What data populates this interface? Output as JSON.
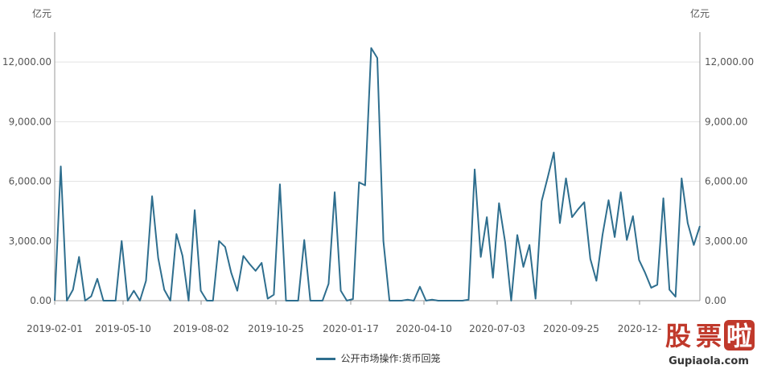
{
  "chart_data": {
    "type": "line",
    "left_unit": "亿元",
    "right_unit": "亿元",
    "ylim": [
      0,
      13500
    ],
    "y_ticks": [
      0,
      3000,
      6000,
      9000,
      12000
    ],
    "y_tick_labels": [
      "0.00",
      "3,000.00",
      "6,000.00",
      "9,000.00",
      "12,000.00"
    ],
    "x_tick_labels": [
      "2019-02-01",
      "2019-05-10",
      "2019-08-02",
      "2019-10-25",
      "2020-01-17",
      "2020-04-10",
      "2020-07-03",
      "2020-09-25",
      "2020-12-"
    ],
    "grid": "horizontal",
    "legend_position": "bottom-center",
    "series": [
      {
        "name": "公开市场操作:货币回笼",
        "color": "#2e6e8e",
        "values": [
          0,
          6750,
          0,
          550,
          2200,
          0,
          220,
          1100,
          0,
          0,
          0,
          3000,
          0,
          500,
          0,
          1000,
          5250,
          2150,
          550,
          0,
          3350,
          2250,
          0,
          4550,
          500,
          0,
          0,
          3000,
          2700,
          1400,
          500,
          2250,
          1850,
          1500,
          1900,
          100,
          300,
          5850,
          0,
          0,
          0,
          3050,
          0,
          0,
          0,
          850,
          5450,
          500,
          0,
          80,
          5950,
          5800,
          12700,
          12200,
          3000,
          0,
          0,
          0,
          50,
          0,
          700,
          0,
          50,
          0,
          0,
          0,
          0,
          0,
          50,
          6600,
          2200,
          4200,
          1150,
          4900,
          2950,
          0,
          3300,
          1700,
          2800,
          100,
          5000,
          6200,
          7450,
          3900,
          6150,
          4200,
          4600,
          4950,
          2100,
          1000,
          3300,
          5050,
          3200,
          5450,
          3050,
          4250,
          2050,
          1400,
          650,
          800,
          5150,
          550,
          200,
          6150,
          3900,
          2800,
          3750
        ]
      }
    ]
  },
  "legend": {
    "label": "公开市场操作:货币回笼"
  },
  "watermark": {
    "text": "股票啦",
    "subtext": "Gupiaola.com"
  }
}
